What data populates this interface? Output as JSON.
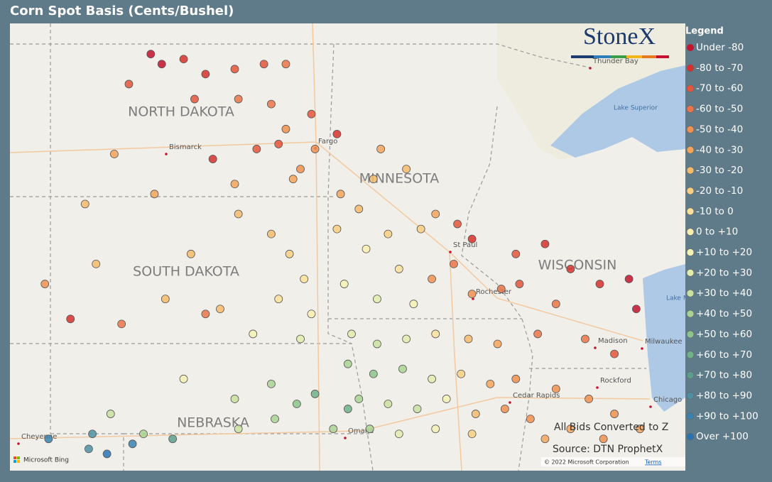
{
  "title": "Corn Spot Basis (Cents/Bushel)",
  "logo": "StoneX",
  "legend": {
    "title": "Legend",
    "classes": [
      {
        "label": "Under -80",
        "max": -80,
        "color": "#c4122f"
      },
      {
        "label": "-80 to -70",
        "min": -80,
        "max": -70,
        "color": "#d7302c"
      },
      {
        "label": "-70 to -60",
        "min": -70,
        "max": -60,
        "color": "#e5553b"
      },
      {
        "label": "-60 to -50",
        "min": -60,
        "max": -50,
        "color": "#ec7446"
      },
      {
        "label": "-50 to -40",
        "min": -50,
        "max": -40,
        "color": "#f1904f"
      },
      {
        "label": "-40 to -30",
        "min": -40,
        "max": -30,
        "color": "#f4a55c"
      },
      {
        "label": "-30 to -20",
        "min": -30,
        "max": -20,
        "color": "#f7bb6c"
      },
      {
        "label": "-20 to -10",
        "min": -20,
        "max": -10,
        "color": "#f9cf83"
      },
      {
        "label": "-10 to 0",
        "min": -10,
        "max": 0,
        "color": "#fae09a"
      },
      {
        "label": "0 to +10",
        "min": 0,
        "max": 10,
        "color": "#fbedb0"
      },
      {
        "label": "+10 to +20",
        "min": 10,
        "max": 20,
        "color": "#f3f2b5"
      },
      {
        "label": "+20 to +30",
        "min": 20,
        "max": 30,
        "color": "#e2ecab"
      },
      {
        "label": "+30 to +40",
        "min": 30,
        "max": 40,
        "color": "#c9e2a0"
      },
      {
        "label": "+40 to +50",
        "min": 40,
        "max": 50,
        "color": "#aad494"
      },
      {
        "label": "+50 to +60",
        "min": 50,
        "max": 60,
        "color": "#8bc58c"
      },
      {
        "label": "+60 to +70",
        "min": 60,
        "max": 70,
        "color": "#6fb287"
      },
      {
        "label": "+70 to +80",
        "min": 70,
        "max": 80,
        "color": "#5c9e8d"
      },
      {
        "label": "+80 to +90",
        "min": 80,
        "max": 90,
        "color": "#4f8fa2"
      },
      {
        "label": "+90 to +100",
        "min": 90,
        "max": 100,
        "color": "#3b82b0"
      },
      {
        "label": "Over +100",
        "min": 100,
        "color": "#2a73b3"
      }
    ]
  },
  "places": {
    "states": [
      "NORTH DAKOTA",
      "SOUTH DAKOTA",
      "MINNESOTA",
      "WISCONSIN",
      "NEBRASKA"
    ],
    "cities": [
      "Bismarck",
      "Fargo",
      "St Paul",
      "Rochester",
      "Madison",
      "Milwaukee",
      "Rockford",
      "Chicago",
      "Cedar Rapids",
      "Omaha",
      "Cheyenne",
      "Thunder Bay"
    ],
    "water": [
      "Lake Superior",
      "Lake Michigan"
    ]
  },
  "notes": [
    "All Bids Converted to Z",
    "Source: DTN ProphetX"
  ],
  "attribution": "Microsoft Bing",
  "copyright": "© 2022 Microsoft Corporation",
  "terms": "Terms",
  "bids": [
    {
      "lon": -101.3,
      "lat": 48.8,
      "basis": -85
    },
    {
      "lon": -101.0,
      "lat": 48.6,
      "basis": -82
    },
    {
      "lon": -100.4,
      "lat": 48.7,
      "basis": -78
    },
    {
      "lon": -99.8,
      "lat": 48.4,
      "basis": -72
    },
    {
      "lon": -99.0,
      "lat": 48.5,
      "basis": -70
    },
    {
      "lon": -98.2,
      "lat": 48.6,
      "basis": -62
    },
    {
      "lon": -97.6,
      "lat": 48.6,
      "basis": -55
    },
    {
      "lon": -101.9,
      "lat": 48.2,
      "basis": -68
    },
    {
      "lon": -100.1,
      "lat": 47.9,
      "basis": -65
    },
    {
      "lon": -98.9,
      "lat": 47.9,
      "basis": -60
    },
    {
      "lon": -98.0,
      "lat": 47.8,
      "basis": -58
    },
    {
      "lon": -97.6,
      "lat": 47.3,
      "basis": -50
    },
    {
      "lon": -96.9,
      "lat": 47.6,
      "basis": -62
    },
    {
      "lon": -97.8,
      "lat": 47.0,
      "basis": -66
    },
    {
      "lon": -98.4,
      "lat": 46.9,
      "basis": -70
    },
    {
      "lon": -99.6,
      "lat": 46.7,
      "basis": -72
    },
    {
      "lon": -97.2,
      "lat": 46.5,
      "basis": -45
    },
    {
      "lon": -96.8,
      "lat": 46.9,
      "basis": -48
    },
    {
      "lon": -102.3,
      "lat": 46.8,
      "basis": -40
    },
    {
      "lon": -99.0,
      "lat": 46.2,
      "basis": -38
    },
    {
      "lon": -97.4,
      "lat": 46.3,
      "basis": -32
    },
    {
      "lon": -96.2,
      "lat": 47.2,
      "basis": -75
    },
    {
      "lon": -101.2,
      "lat": 46.0,
      "basis": -35
    },
    {
      "lon": -103.1,
      "lat": 45.8,
      "basis": -28
    },
    {
      "lon": -102.8,
      "lat": 44.6,
      "basis": -22
    },
    {
      "lon": -100.2,
      "lat": 44.8,
      "basis": -25
    },
    {
      "lon": -98.9,
      "lat": 45.6,
      "basis": -30
    },
    {
      "lon": -98.0,
      "lat": 45.2,
      "basis": -24
    },
    {
      "lon": -97.5,
      "lat": 44.8,
      "basis": -15
    },
    {
      "lon": -97.1,
      "lat": 44.3,
      "basis": -8
    },
    {
      "lon": -96.9,
      "lat": 43.6,
      "basis": 5
    },
    {
      "lon": -97.8,
      "lat": 43.9,
      "basis": -5
    },
    {
      "lon": -99.4,
      "lat": 43.7,
      "basis": -30
    },
    {
      "lon": -100.9,
      "lat": 43.9,
      "basis": -28
    },
    {
      "lon": -98.5,
      "lat": 43.2,
      "basis": 15
    },
    {
      "lon": -97.2,
      "lat": 43.1,
      "basis": 22
    },
    {
      "lon": -104.2,
      "lat": 44.2,
      "basis": -45
    },
    {
      "lon": -103.5,
      "lat": 43.5,
      "basis": -78
    },
    {
      "lon": -102.1,
      "lat": 43.4,
      "basis": -55
    },
    {
      "lon": -99.8,
      "lat": 43.6,
      "basis": -55
    },
    {
      "lon": -100.4,
      "lat": 42.3,
      "basis": 12
    },
    {
      "lon": -99.0,
      "lat": 41.9,
      "basis": 30
    },
    {
      "lon": -98.0,
      "lat": 42.2,
      "basis": 42
    },
    {
      "lon": -97.3,
      "lat": 41.8,
      "basis": 55
    },
    {
      "lon": -96.8,
      "lat": 42.0,
      "basis": 60
    },
    {
      "lon": -97.9,
      "lat": 41.5,
      "basis": 48
    },
    {
      "lon": -98.9,
      "lat": 41.3,
      "basis": 38
    },
    {
      "lon": -101.5,
      "lat": 41.2,
      "basis": 45
    },
    {
      "lon": -102.4,
      "lat": 41.6,
      "basis": 32
    },
    {
      "lon": -103.0,
      "lat": 40.9,
      "basis": 82
    },
    {
      "lon": -104.1,
      "lat": 41.1,
      "basis": 92
    },
    {
      "lon": -102.9,
      "lat": 41.2,
      "basis": 88
    },
    {
      "lon": -101.8,
      "lat": 41.0,
      "basis": 95
    },
    {
      "lon": -102.5,
      "lat": 40.8,
      "basis": 105
    },
    {
      "lon": -100.7,
      "lat": 41.1,
      "basis": 72
    },
    {
      "lon": -96.3,
      "lat": 41.3,
      "basis": 48
    },
    {
      "lon": -95.9,
      "lat": 41.7,
      "basis": 62
    },
    {
      "lon": -96.1,
      "lat": 46.0,
      "basis": -35
    },
    {
      "lon": -95.2,
      "lat": 46.3,
      "basis": -30
    },
    {
      "lon": -94.3,
      "lat": 46.5,
      "basis": -28
    },
    {
      "lon": -95.6,
      "lat": 45.7,
      "basis": -22
    },
    {
      "lon": -94.8,
      "lat": 45.2,
      "basis": -15
    },
    {
      "lon": -93.9,
      "lat": 45.3,
      "basis": -20
    },
    {
      "lon": -93.5,
      "lat": 45.6,
      "basis": -38
    },
    {
      "lon": -92.9,
      "lat": 45.4,
      "basis": -68
    },
    {
      "lon": -92.5,
      "lat": 45.1,
      "basis": -72
    },
    {
      "lon": -93.0,
      "lat": 44.6,
      "basis": -55
    },
    {
      "lon": -93.6,
      "lat": 44.3,
      "basis": -42
    },
    {
      "lon": -94.5,
      "lat": 44.5,
      "basis": -5
    },
    {
      "lon": -95.4,
      "lat": 44.9,
      "basis": 5
    },
    {
      "lon": -96.0,
      "lat": 44.2,
      "basis": 12
    },
    {
      "lon": -95.1,
      "lat": 43.9,
      "basis": 25
    },
    {
      "lon": -94.1,
      "lat": 43.8,
      "basis": 15
    },
    {
      "lon": -92.5,
      "lat": 44.0,
      "basis": -45
    },
    {
      "lon": -91.7,
      "lat": 44.1,
      "basis": -52
    },
    {
      "lon": -96.2,
      "lat": 45.3,
      "basis": -12
    },
    {
      "lon": -95.0,
      "lat": 46.9,
      "basis": -40
    },
    {
      "lon": -91.3,
      "lat": 44.8,
      "basis": -70
    },
    {
      "lon": -90.5,
      "lat": 45.0,
      "basis": -78
    },
    {
      "lon": -89.8,
      "lat": 44.5,
      "basis": -75
    },
    {
      "lon": -89.0,
      "lat": 44.2,
      "basis": -72
    },
    {
      "lon": -88.2,
      "lat": 44.3,
      "basis": -82
    },
    {
      "lon": -88.0,
      "lat": 43.7,
      "basis": -85
    },
    {
      "lon": -90.2,
      "lat": 43.8,
      "basis": -60
    },
    {
      "lon": -89.4,
      "lat": 43.1,
      "basis": -58
    },
    {
      "lon": -90.7,
      "lat": 43.2,
      "basis": -52
    },
    {
      "lon": -88.6,
      "lat": 42.8,
      "basis": -65
    },
    {
      "lon": -91.2,
      "lat": 44.2,
      "basis": -62
    },
    {
      "lon": -95.8,
      "lat": 43.2,
      "basis": 28
    },
    {
      "lon": -95.1,
      "lat": 43.0,
      "basis": 35
    },
    {
      "lon": -94.3,
      "lat": 43.1,
      "basis": 22
    },
    {
      "lon": -93.5,
      "lat": 43.2,
      "basis": -5
    },
    {
      "lon": -92.6,
      "lat": 43.1,
      "basis": -28
    },
    {
      "lon": -91.8,
      "lat": 43.0,
      "basis": -40
    },
    {
      "lon": -95.9,
      "lat": 42.6,
      "basis": 45
    },
    {
      "lon": -95.2,
      "lat": 42.4,
      "basis": 52
    },
    {
      "lon": -94.4,
      "lat": 42.5,
      "basis": 40
    },
    {
      "lon": -93.6,
      "lat": 42.3,
      "basis": 25
    },
    {
      "lon": -92.8,
      "lat": 42.4,
      "basis": -12
    },
    {
      "lon": -92.0,
      "lat": 42.2,
      "basis": -35
    },
    {
      "lon": -91.3,
      "lat": 42.3,
      "basis": -42
    },
    {
      "lon": -95.6,
      "lat": 41.9,
      "basis": 48
    },
    {
      "lon": -94.8,
      "lat": 41.8,
      "basis": 38
    },
    {
      "lon": -94.0,
      "lat": 41.7,
      "basis": 30
    },
    {
      "lon": -93.2,
      "lat": 41.9,
      "basis": 10
    },
    {
      "lon": -92.4,
      "lat": 41.6,
      "basis": -25
    },
    {
      "lon": -91.6,
      "lat": 41.7,
      "basis": -42
    },
    {
      "lon": -90.9,
      "lat": 41.5,
      "basis": -45
    },
    {
      "lon": -95.3,
      "lat": 41.3,
      "basis": 42
    },
    {
      "lon": -94.5,
      "lat": 41.2,
      "basis": 28
    },
    {
      "lon": -93.5,
      "lat": 41.3,
      "basis": 15
    },
    {
      "lon": -92.5,
      "lat": 41.2,
      "basis": -20
    },
    {
      "lon": -90.2,
      "lat": 42.1,
      "basis": -48
    },
    {
      "lon": -89.3,
      "lat": 41.9,
      "basis": -46
    },
    {
      "lon": -88.6,
      "lat": 41.6,
      "basis": -42
    },
    {
      "lon": -89.8,
      "lat": 41.3,
      "basis": -40
    },
    {
      "lon": -88.9,
      "lat": 41.1,
      "basis": -44
    },
    {
      "lon": -90.5,
      "lat": 41.1,
      "basis": -38
    },
    {
      "lon": -87.9,
      "lat": 41.3,
      "basis": -35
    }
  ]
}
